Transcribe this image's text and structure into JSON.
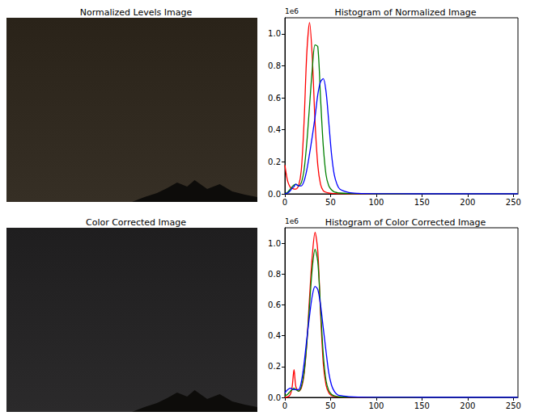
{
  "chart_data": [
    {
      "type": "image",
      "title": "Normalized Levels Image",
      "color": "#2a2319"
    },
    {
      "type": "line",
      "title": "Histogram of Normalized Image",
      "annotation": "1e6",
      "x": [
        0,
        3,
        6,
        8,
        10,
        12,
        15,
        18,
        21,
        24,
        27,
        30,
        33,
        36,
        39,
        42,
        45,
        48,
        51,
        54,
        57,
        60,
        70,
        80,
        100,
        150,
        200,
        255
      ],
      "xlim": [
        0,
        255
      ],
      "xticks": [
        0,
        50,
        100,
        150,
        200,
        250
      ],
      "ylim": [
        0,
        1.1
      ],
      "yticks": [
        {
          "value": 0,
          "label": "0.0"
        },
        0.2,
        0.4,
        0.6,
        0.8,
        {
          "value": 1,
          "label": "1.0"
        }
      ],
      "grid": false,
      "series": [
        {
          "color": "#ff0000",
          "values": [
            0.18,
            0.08,
            0.04,
            0.035,
            0.03,
            0.03,
            0.05,
            0.15,
            0.45,
            0.88,
            1.07,
            0.85,
            0.45,
            0.18,
            0.06,
            0.02,
            0.01,
            0.005,
            0.003,
            0.002,
            0.001,
            0.001,
            0,
            0,
            0,
            0,
            0,
            0
          ]
        },
        {
          "color": "#008000",
          "values": [
            0,
            0.01,
            0.03,
            0.045,
            0.055,
            0.06,
            0.05,
            0.07,
            0.15,
            0.32,
            0.55,
            0.78,
            0.93,
            0.92,
            0.6,
            0.3,
            0.12,
            0.05,
            0.025,
            0.012,
            0.008,
            0.005,
            0.002,
            0.001,
            0,
            0,
            0,
            0
          ]
        },
        {
          "color": "#0000ff",
          "values": [
            0,
            0.005,
            0.02,
            0.035,
            0.045,
            0.06,
            0.05,
            0.05,
            0.08,
            0.15,
            0.25,
            0.36,
            0.48,
            0.62,
            0.7,
            0.72,
            0.64,
            0.45,
            0.25,
            0.12,
            0.06,
            0.03,
            0.008,
            0.003,
            0.001,
            0,
            0,
            0
          ]
        }
      ]
    },
    {
      "type": "image",
      "title": "Color Corrected Image",
      "color": "#1f1e1f"
    },
    {
      "type": "line",
      "title": "Histogram of Color Corrected Image",
      "annotation": "1e6",
      "x": [
        0,
        3,
        6,
        8,
        10,
        12,
        15,
        18,
        21,
        24,
        27,
        30,
        33,
        36,
        39,
        42,
        45,
        48,
        51,
        54,
        57,
        60,
        70,
        80,
        100,
        150,
        200,
        255
      ],
      "xlim": [
        0,
        255
      ],
      "xticks": [
        0,
        50,
        100,
        150,
        200,
        250
      ],
      "ylim": [
        0,
        1.1
      ],
      "yticks": [
        {
          "value": 0,
          "label": "0.0"
        },
        0.2,
        0.4,
        0.6,
        0.8,
        {
          "value": 1,
          "label": "1.0"
        }
      ],
      "grid": false,
      "series": [
        {
          "color": "#ff0000",
          "values": [
            0,
            0.003,
            0.02,
            0.07,
            0.18,
            0.07,
            0.04,
            0.06,
            0.15,
            0.35,
            0.65,
            0.92,
            1.07,
            0.95,
            0.55,
            0.22,
            0.08,
            0.03,
            0.012,
            0.006,
            0.003,
            0.002,
            0.001,
            0,
            0,
            0,
            0,
            0
          ]
        },
        {
          "color": "#008000",
          "values": [
            0.01,
            0.02,
            0.04,
            0.05,
            0.06,
            0.05,
            0.04,
            0.07,
            0.16,
            0.35,
            0.6,
            0.84,
            0.96,
            0.88,
            0.58,
            0.28,
            0.11,
            0.045,
            0.02,
            0.01,
            0.006,
            0.004,
            0.002,
            0.001,
            0,
            0,
            0,
            0
          ]
        },
        {
          "color": "#0000ff",
          "values": [
            0.03,
            0.05,
            0.06,
            0.055,
            0.05,
            0.05,
            0.05,
            0.1,
            0.22,
            0.38,
            0.53,
            0.66,
            0.72,
            0.7,
            0.6,
            0.45,
            0.3,
            0.16,
            0.08,
            0.04,
            0.02,
            0.012,
            0.005,
            0.002,
            0.001,
            0,
            0,
            0
          ]
        }
      ]
    }
  ]
}
